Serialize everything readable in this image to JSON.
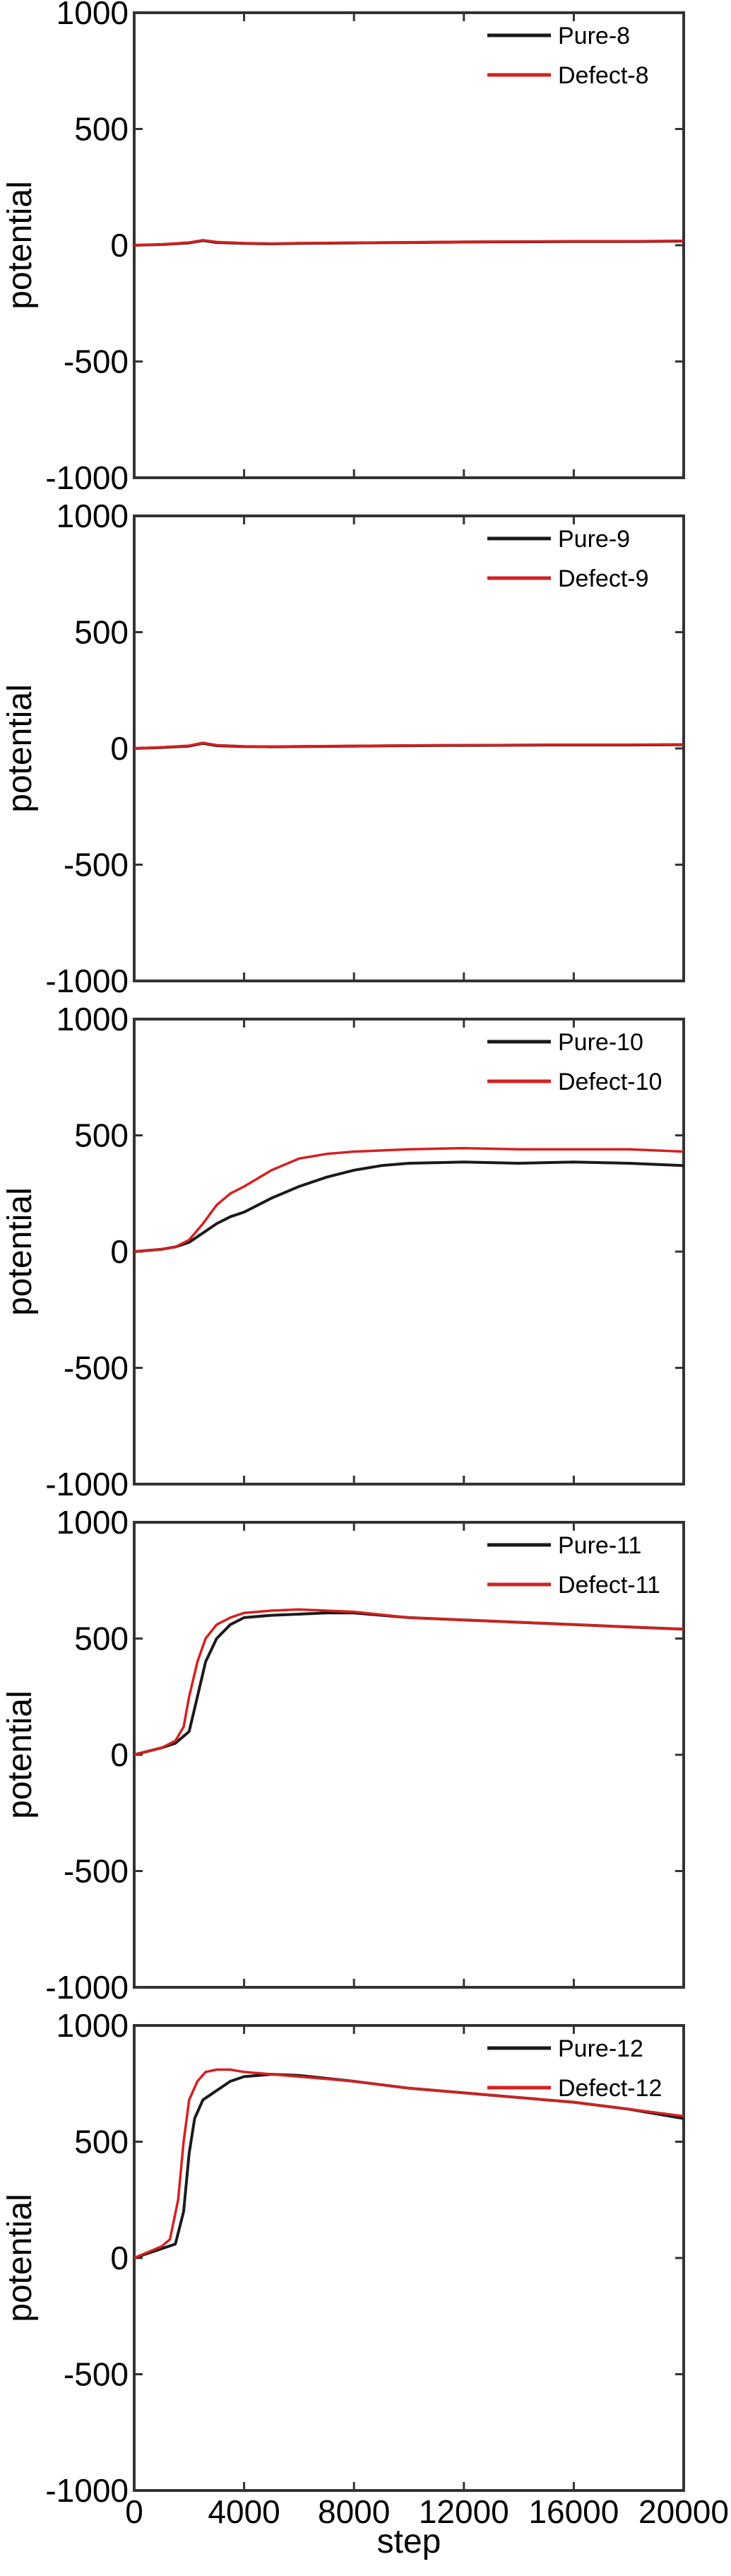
{
  "colors": {
    "pure": "#1a1a1a",
    "defect": "#d42020",
    "frame": "#333333"
  },
  "chart_data": [
    {
      "type": "line",
      "ylabel": "potential",
      "xlabel": "",
      "xlim": [
        0,
        20000
      ],
      "ylim": [
        -1000,
        1000
      ],
      "xticks": [
        4000,
        8000,
        12000,
        16000,
        20000
      ],
      "yticks": [
        -1000,
        -500,
        0,
        500,
        1000
      ],
      "x_tick_labels": [],
      "y_tick_labels": [
        "1000",
        "500",
        "0",
        "-500",
        "-1000"
      ],
      "legend_position": "top-right",
      "series": [
        {
          "name": "Pure-8",
          "color": "#1a1a1a",
          "x": [
            0,
            1000,
            2000,
            2500,
            3000,
            4000,
            5000,
            6000,
            8000,
            10000,
            12000,
            14000,
            16000,
            18000,
            20000
          ],
          "y": [
            0,
            3,
            10,
            20,
            12,
            8,
            6,
            8,
            10,
            12,
            14,
            15,
            16,
            16,
            18
          ]
        },
        {
          "name": "Defect-8",
          "color": "#d42020",
          "x": [
            0,
            1000,
            2000,
            2500,
            3000,
            4000,
            5000,
            6000,
            8000,
            10000,
            12000,
            14000,
            16000,
            18000,
            20000
          ],
          "y": [
            0,
            4,
            12,
            22,
            14,
            9,
            7,
            9,
            11,
            13,
            15,
            16,
            17,
            17,
            19
          ]
        }
      ]
    },
    {
      "type": "line",
      "ylabel": "potential",
      "xlabel": "",
      "xlim": [
        0,
        20000
      ],
      "ylim": [
        -1000,
        1000
      ],
      "xticks": [
        4000,
        8000,
        12000,
        16000,
        20000
      ],
      "yticks": [
        -1000,
        -500,
        0,
        500,
        1000
      ],
      "x_tick_labels": [],
      "y_tick_labels": [
        "1000",
        "500",
        "0",
        "-500",
        "-1000"
      ],
      "legend_position": "top-right",
      "series": [
        {
          "name": "Pure-9",
          "color": "#1a1a1a",
          "x": [
            0,
            1000,
            2000,
            2500,
            3000,
            4000,
            5000,
            6000,
            8000,
            10000,
            12000,
            14000,
            16000,
            18000,
            20000
          ],
          "y": [
            0,
            4,
            10,
            22,
            12,
            8,
            7,
            8,
            10,
            12,
            13,
            14,
            15,
            15,
            16
          ]
        },
        {
          "name": "Defect-9",
          "color": "#d42020",
          "x": [
            0,
            1000,
            2000,
            2500,
            3000,
            4000,
            5000,
            6000,
            8000,
            10000,
            12000,
            14000,
            16000,
            18000,
            20000
          ],
          "y": [
            0,
            5,
            12,
            24,
            14,
            9,
            8,
            9,
            11,
            13,
            14,
            15,
            16,
            16,
            17
          ]
        }
      ]
    },
    {
      "type": "line",
      "ylabel": "potential",
      "xlabel": "",
      "xlim": [
        0,
        20000
      ],
      "ylim": [
        -1000,
        1000
      ],
      "xticks": [
        4000,
        8000,
        12000,
        16000,
        20000
      ],
      "yticks": [
        -1000,
        -500,
        0,
        500,
        1000
      ],
      "x_tick_labels": [],
      "y_tick_labels": [
        "1000",
        "500",
        "0",
        "-500",
        "-1000"
      ],
      "legend_position": "top-right",
      "series": [
        {
          "name": "Pure-10",
          "color": "#1a1a1a",
          "x": [
            0,
            1000,
            1500,
            2000,
            2500,
            3000,
            3500,
            4000,
            5000,
            6000,
            7000,
            8000,
            9000,
            10000,
            12000,
            14000,
            16000,
            18000,
            20000
          ],
          "y": [
            0,
            10,
            20,
            40,
            80,
            120,
            150,
            170,
            230,
            280,
            320,
            350,
            370,
            380,
            385,
            380,
            385,
            380,
            370
          ]
        },
        {
          "name": "Defect-10",
          "color": "#d42020",
          "x": [
            0,
            1000,
            1500,
            2000,
            2500,
            3000,
            3500,
            4000,
            5000,
            6000,
            7000,
            8000,
            9000,
            10000,
            12000,
            14000,
            16000,
            18000,
            20000
          ],
          "y": [
            0,
            10,
            20,
            50,
            120,
            200,
            250,
            280,
            350,
            400,
            420,
            430,
            435,
            440,
            445,
            440,
            440,
            440,
            430
          ]
        }
      ]
    },
    {
      "type": "line",
      "ylabel": "potential",
      "xlabel": "",
      "xlim": [
        0,
        20000
      ],
      "ylim": [
        -1000,
        1000
      ],
      "xticks": [
        4000,
        8000,
        12000,
        16000,
        20000
      ],
      "yticks": [
        -1000,
        -500,
        0,
        500,
        1000
      ],
      "x_tick_labels": [],
      "y_tick_labels": [
        "1000",
        "500",
        "0",
        "-500",
        "-1000"
      ],
      "legend_position": "top-right",
      "series": [
        {
          "name": "Pure-11",
          "color": "#1a1a1a",
          "x": [
            0,
            1000,
            1500,
            2000,
            2300,
            2600,
            3000,
            3500,
            4000,
            5000,
            6000,
            7000,
            8000,
            10000,
            12000,
            14000,
            16000,
            18000,
            20000
          ],
          "y": [
            0,
            30,
            50,
            100,
            250,
            400,
            500,
            560,
            590,
            600,
            605,
            610,
            610,
            590,
            580,
            570,
            560,
            550,
            540
          ]
        },
        {
          "name": "Defect-11",
          "color": "#d42020",
          "x": [
            0,
            1000,
            1500,
            1800,
            2000,
            2300,
            2600,
            3000,
            3500,
            4000,
            5000,
            6000,
            7000,
            8000,
            10000,
            12000,
            14000,
            16000,
            18000,
            20000
          ],
          "y": [
            0,
            30,
            60,
            120,
            250,
            400,
            500,
            560,
            590,
            610,
            620,
            625,
            620,
            615,
            590,
            580,
            570,
            560,
            550,
            540
          ]
        }
      ]
    },
    {
      "type": "line",
      "ylabel": "potential",
      "xlabel": "step",
      "xlim": [
        0,
        20000
      ],
      "ylim": [
        -1000,
        1000
      ],
      "xticks": [
        0,
        4000,
        8000,
        12000,
        16000,
        20000
      ],
      "yticks": [
        -1000,
        -500,
        0,
        500,
        1000
      ],
      "x_tick_labels": [
        "0",
        "4000",
        "8000",
        "12000",
        "16000",
        "20000"
      ],
      "y_tick_labels": [
        "1000",
        "500",
        "0",
        "-500",
        "-1000"
      ],
      "legend_position": "top-right",
      "series": [
        {
          "name": "Pure-12",
          "color": "#1a1a1a",
          "x": [
            0,
            1000,
            1500,
            1800,
            2000,
            2200,
            2500,
            3000,
            3500,
            4000,
            5000,
            6000,
            8000,
            10000,
            12000,
            14000,
            16000,
            18000,
            20000
          ],
          "y": [
            0,
            40,
            60,
            200,
            450,
            600,
            680,
            720,
            760,
            780,
            790,
            785,
            760,
            730,
            710,
            690,
            670,
            640,
            600
          ]
        },
        {
          "name": "Defect-12",
          "color": "#d42020",
          "x": [
            0,
            1000,
            1300,
            1600,
            1800,
            2000,
            2300,
            2600,
            3000,
            3500,
            4000,
            5000,
            6000,
            8000,
            10000,
            12000,
            14000,
            16000,
            18000,
            20000
          ],
          "y": [
            0,
            50,
            80,
            250,
            500,
            680,
            760,
            800,
            810,
            810,
            800,
            790,
            780,
            760,
            730,
            710,
            690,
            670,
            640,
            610
          ]
        }
      ]
    }
  ]
}
